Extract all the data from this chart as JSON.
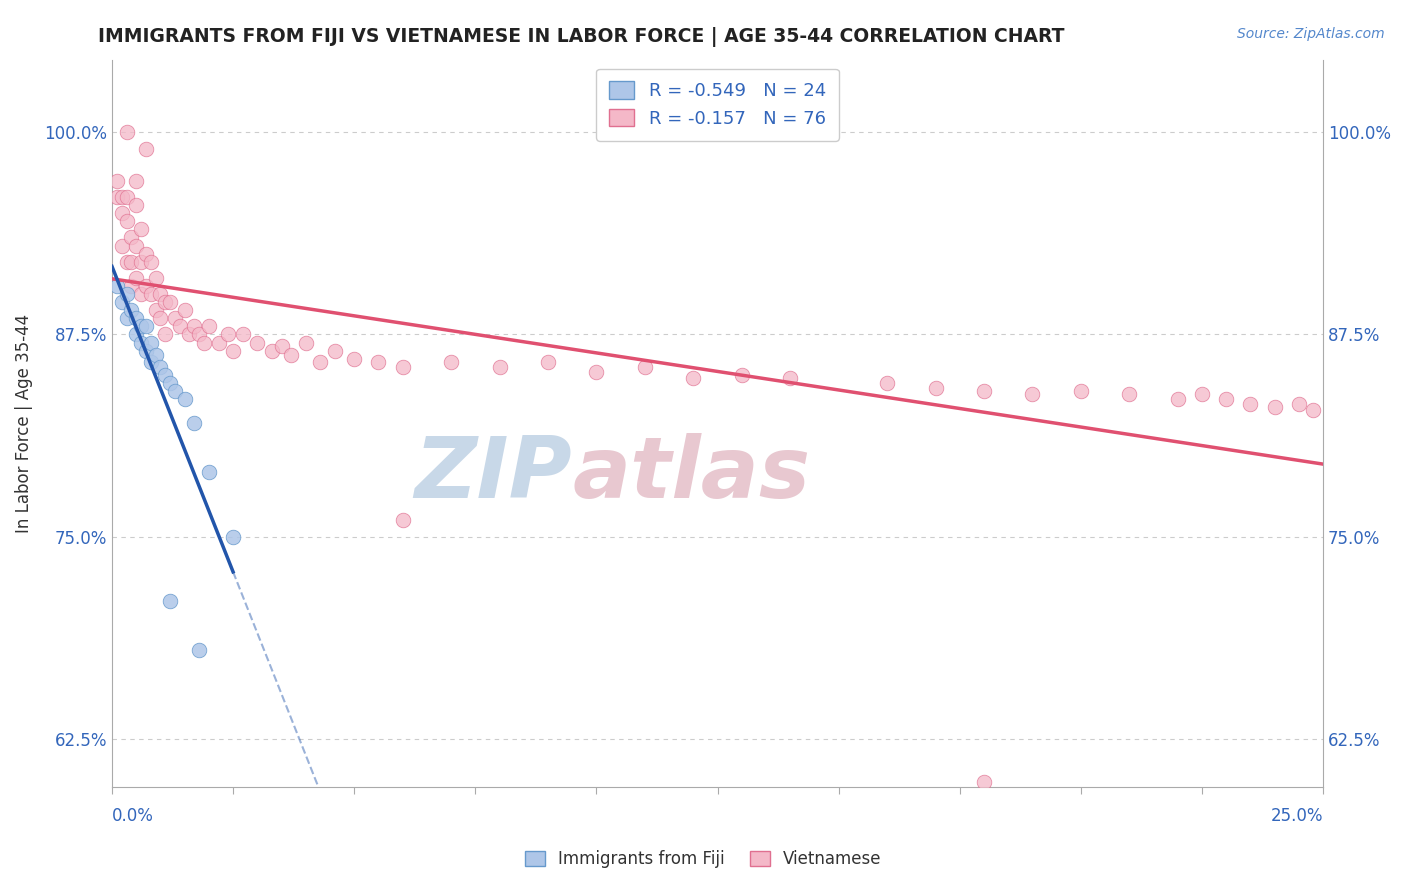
{
  "title": "IMMIGRANTS FROM FIJI VS VIETNAMESE IN LABOR FORCE | AGE 35-44 CORRELATION CHART",
  "source": "Source: ZipAtlas.com",
  "ylabel": "In Labor Force | Age 35-44",
  "legend_label_fiji": "Immigrants from Fiji",
  "legend_label_viet": "Vietnamese",
  "fiji_color": "#aec6e8",
  "fiji_edge_color": "#6699cc",
  "viet_color": "#f4b8c8",
  "viet_edge_color": "#e07090",
  "trend_fiji_color": "#2255aa",
  "trend_viet_color": "#e05070",
  "R_fiji": -0.549,
  "N_fiji": 24,
  "R_viet": -0.157,
  "N_viet": 76,
  "xlim": [
    0.0,
    0.25
  ],
  "ylim": [
    0.595,
    1.045
  ],
  "yticks": [
    0.625,
    0.75,
    0.875,
    1.0
  ],
  "ytick_labels": [
    "62.5%",
    "75.0%",
    "87.5%",
    "100.0%"
  ],
  "background_color": "#ffffff",
  "grid_color": "#cccccc",
  "fiji_x": [
    0.001,
    0.002,
    0.003,
    0.003,
    0.004,
    0.005,
    0.005,
    0.006,
    0.006,
    0.007,
    0.007,
    0.008,
    0.008,
    0.009,
    0.01,
    0.011,
    0.012,
    0.013,
    0.015,
    0.017,
    0.02,
    0.025,
    0.012,
    0.018
  ],
  "fiji_y": [
    0.905,
    0.895,
    0.9,
    0.885,
    0.89,
    0.885,
    0.875,
    0.88,
    0.87,
    0.88,
    0.865,
    0.87,
    0.858,
    0.862,
    0.855,
    0.85,
    0.845,
    0.84,
    0.835,
    0.82,
    0.79,
    0.75,
    0.71,
    0.68
  ],
  "viet_x": [
    0.001,
    0.001,
    0.002,
    0.002,
    0.002,
    0.003,
    0.003,
    0.003,
    0.004,
    0.004,
    0.004,
    0.005,
    0.005,
    0.005,
    0.005,
    0.006,
    0.006,
    0.006,
    0.007,
    0.007,
    0.008,
    0.008,
    0.009,
    0.009,
    0.01,
    0.01,
    0.011,
    0.011,
    0.012,
    0.013,
    0.014,
    0.015,
    0.016,
    0.017,
    0.018,
    0.019,
    0.02,
    0.022,
    0.024,
    0.025,
    0.027,
    0.03,
    0.033,
    0.035,
    0.037,
    0.04,
    0.043,
    0.046,
    0.05,
    0.055,
    0.06,
    0.07,
    0.08,
    0.09,
    0.1,
    0.11,
    0.12,
    0.13,
    0.14,
    0.16,
    0.17,
    0.18,
    0.19,
    0.2,
    0.21,
    0.22,
    0.225,
    0.23,
    0.235,
    0.24,
    0.245,
    0.248,
    0.003,
    0.007,
    0.18,
    0.06
  ],
  "viet_y": [
    0.96,
    0.97,
    0.96,
    0.95,
    0.93,
    0.96,
    0.945,
    0.92,
    0.935,
    0.92,
    0.905,
    0.97,
    0.955,
    0.93,
    0.91,
    0.94,
    0.92,
    0.9,
    0.925,
    0.905,
    0.92,
    0.9,
    0.91,
    0.89,
    0.9,
    0.885,
    0.895,
    0.875,
    0.895,
    0.885,
    0.88,
    0.89,
    0.875,
    0.88,
    0.875,
    0.87,
    0.88,
    0.87,
    0.875,
    0.865,
    0.875,
    0.87,
    0.865,
    0.868,
    0.862,
    0.87,
    0.858,
    0.865,
    0.86,
    0.858,
    0.855,
    0.858,
    0.855,
    0.858,
    0.852,
    0.855,
    0.848,
    0.85,
    0.848,
    0.845,
    0.842,
    0.84,
    0.838,
    0.84,
    0.838,
    0.835,
    0.838,
    0.835,
    0.832,
    0.83,
    0.832,
    0.828,
    1.0,
    0.99,
    0.598,
    0.76
  ],
  "watermark_zip_color": "#c8d8e8",
  "watermark_atlas_color": "#e8c8d0"
}
